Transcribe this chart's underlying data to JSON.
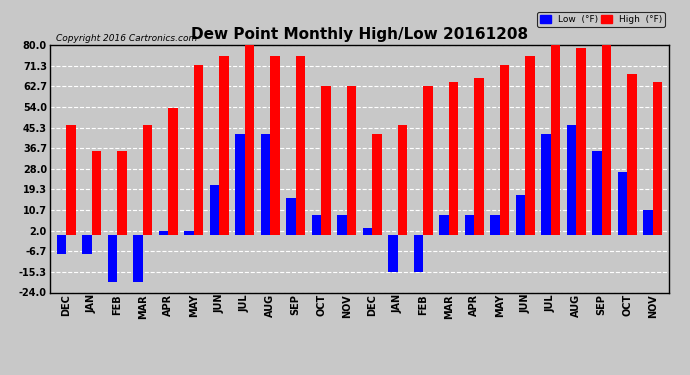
{
  "title": "Dew Point Monthly High/Low 20161208",
  "copyright": "Copyright 2016 Cartronics.com",
  "categories": [
    "DEC",
    "JAN",
    "FEB",
    "MAR",
    "APR",
    "MAY",
    "JUN",
    "JUL",
    "AUG",
    "SEP",
    "OCT",
    "NOV",
    "DEC",
    "JAN",
    "FEB",
    "MAR",
    "APR",
    "MAY",
    "JUN",
    "JUL",
    "AUG",
    "SEP",
    "OCT",
    "NOV"
  ],
  "high_values": [
    46.4,
    35.6,
    35.6,
    46.4,
    53.6,
    71.6,
    75.2,
    80.6,
    75.2,
    75.2,
    62.6,
    62.6,
    42.8,
    46.4,
    62.6,
    64.4,
    66.2,
    71.6,
    75.2,
    80.6,
    78.8,
    80.6,
    68.0,
    64.4
  ],
  "low_values": [
    -8.0,
    -8.0,
    -19.4,
    -19.4,
    2.0,
    2.0,
    21.2,
    42.8,
    42.8,
    15.8,
    8.6,
    8.6,
    3.2,
    -15.3,
    -15.3,
    8.6,
    8.6,
    8.6,
    17.0,
    42.8,
    46.4,
    35.6,
    26.6,
    10.7
  ],
  "bar_width": 0.38,
  "ylim": [
    -24.0,
    80.0
  ],
  "yticks": [
    -24.0,
    -15.3,
    -6.7,
    2.0,
    10.7,
    19.3,
    28.0,
    36.7,
    45.3,
    54.0,
    62.7,
    71.3,
    80.0
  ],
  "ytick_labels": [
    "-24.0",
    "-15.3",
    "-6.7",
    "2.0",
    "10.7",
    "19.3",
    "28.0",
    "36.7",
    "45.3",
    "54.0",
    "62.7",
    "71.3",
    "80.0"
  ],
  "high_color": "#FF0000",
  "low_color": "#0000FF",
  "background_color": "#C8C8C8",
  "plot_bg_color": "#C8C8C8",
  "grid_color": "white",
  "title_fontsize": 11,
  "tick_fontsize": 7,
  "copyright_fontsize": 6.5
}
